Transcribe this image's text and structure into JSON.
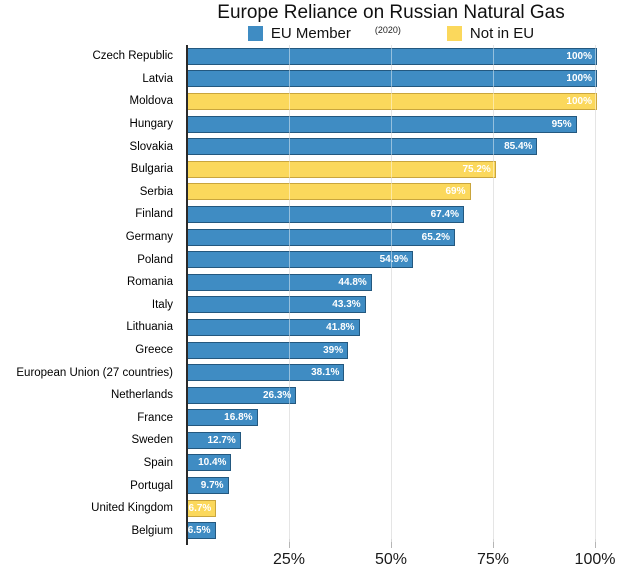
{
  "chart_data": {
    "type": "bar",
    "orientation": "horizontal",
    "title": "Europe Reliance on Russian Natural Gas",
    "subtitle": "(2020)",
    "legend": [
      {
        "key": "eu",
        "label": "EU Member",
        "color": "#3f8cc3"
      },
      {
        "key": "non_eu",
        "label": "Not in EU",
        "color": "#fbd85c"
      }
    ],
    "colors": {
      "eu": {
        "fill": "#3f8cc3",
        "border": "#23587f"
      },
      "non_eu": {
        "fill": "#fbd85c",
        "border": "#c9a53d"
      }
    },
    "xlim": [
      0,
      100
    ],
    "x_ticks": [
      {
        "value": 25,
        "label": "25%"
      },
      {
        "value": 50,
        "label": "50%"
      },
      {
        "value": 75,
        "label": "75%"
      },
      {
        "value": 100,
        "label": "100%"
      }
    ],
    "grid": true,
    "rows": [
      {
        "country": "Czech Republic",
        "value": 100,
        "label": "100%",
        "group": "eu"
      },
      {
        "country": "Latvia",
        "value": 100,
        "label": "100%",
        "group": "eu"
      },
      {
        "country": "Moldova",
        "value": 100,
        "label": "100%",
        "group": "non_eu"
      },
      {
        "country": "Hungary",
        "value": 95,
        "label": "95%",
        "group": "eu"
      },
      {
        "country": "Slovakia",
        "value": 85.4,
        "label": "85.4%",
        "group": "eu"
      },
      {
        "country": "Bulgaria",
        "value": 75.2,
        "label": "75.2%",
        "group": "non_eu"
      },
      {
        "country": "Serbia",
        "value": 69,
        "label": "69%",
        "group": "non_eu"
      },
      {
        "country": "Finland",
        "value": 67.4,
        "label": "67.4%",
        "group": "eu"
      },
      {
        "country": "Germany",
        "value": 65.2,
        "label": "65.2%",
        "group": "eu"
      },
      {
        "country": "Poland",
        "value": 54.9,
        "label": "54.9%",
        "group": "eu"
      },
      {
        "country": "Romania",
        "value": 44.8,
        "label": "44.8%",
        "group": "eu"
      },
      {
        "country": "Italy",
        "value": 43.3,
        "label": "43.3%",
        "group": "eu"
      },
      {
        "country": "Lithuania",
        "value": 41.8,
        "label": "41.8%",
        "group": "eu"
      },
      {
        "country": "Greece",
        "value": 39,
        "label": "39%",
        "group": "eu"
      },
      {
        "country": "European Union (27 countries)",
        "value": 38.1,
        "label": "38.1%",
        "group": "eu"
      },
      {
        "country": "Netherlands",
        "value": 26.3,
        "label": "26.3%",
        "group": "eu"
      },
      {
        "country": "France",
        "value": 16.8,
        "label": "16.8%",
        "group": "eu"
      },
      {
        "country": "Sweden",
        "value": 12.7,
        "label": "12.7%",
        "group": "eu"
      },
      {
        "country": "Spain",
        "value": 10.4,
        "label": "10.4%",
        "group": "eu"
      },
      {
        "country": "Portugal",
        "value": 9.7,
        "label": "9.7%",
        "group": "eu"
      },
      {
        "country": "United Kingdom",
        "value": 6.7,
        "label": "6.7%",
        "group": "non_eu"
      },
      {
        "country": "Belgium",
        "value": 6.5,
        "label": "6.5%",
        "group": "eu"
      }
    ]
  }
}
